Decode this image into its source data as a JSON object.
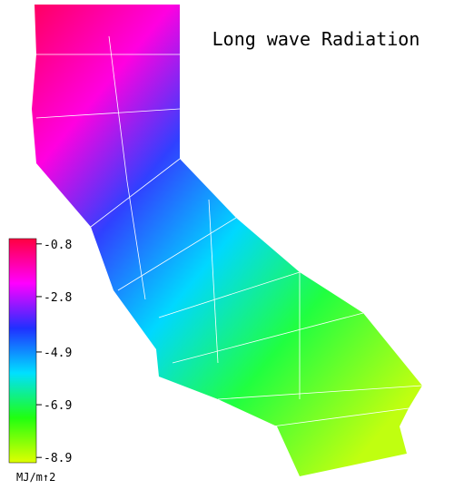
{
  "title": "Long wave Radiation",
  "colorbar": {
    "ticks": [
      -0.8,
      -2.8,
      -4.9,
      -6.9,
      -8.9
    ],
    "range": [
      -0.6,
      -9.1
    ],
    "colors": [
      "#ff0040",
      "#ff00ff",
      "#2030ff",
      "#00e0ff",
      "#20ff10",
      "#e0ff00"
    ],
    "unit": "MJ/m↑2"
  }
}
